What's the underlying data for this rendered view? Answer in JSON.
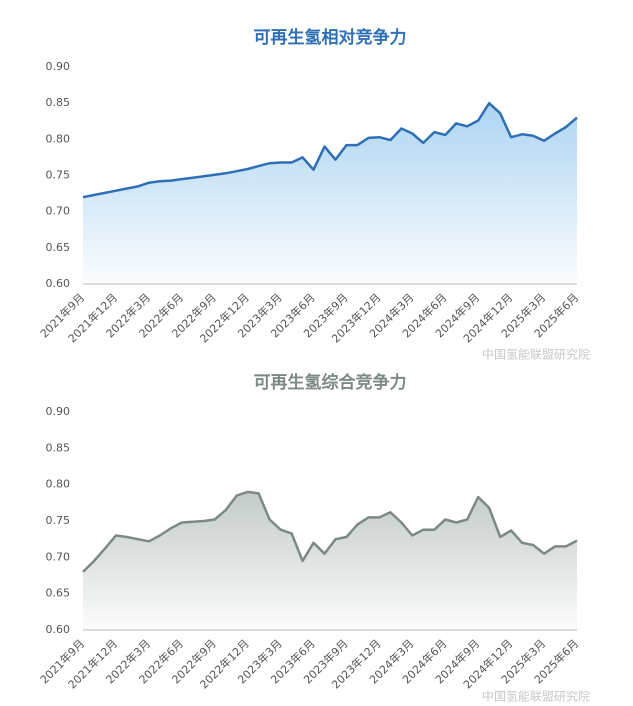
{
  "chart_data": [
    {
      "type": "area",
      "title": "可再生氢相对竞争力",
      "color": "#2f6fb5",
      "fill_color": "#9fcdf0",
      "grid": false,
      "source": "中国氢能联盟研究院",
      "categories": [
        "2021年9月",
        null,
        null,
        "2021年12月",
        null,
        null,
        "2022年3月",
        null,
        null,
        "2022年6月",
        null,
        null,
        "2022年9月",
        null,
        null,
        "2022年12月",
        null,
        null,
        "2023年3月",
        null,
        null,
        "2023年6月",
        null,
        null,
        "2023年9月",
        null,
        null,
        "2023年12月",
        null,
        null,
        "2024年3月",
        null,
        null,
        "2024年6月",
        null,
        null,
        "2024年9月",
        null,
        null,
        "2024年12月",
        null,
        null,
        "2025年3月",
        null,
        null,
        "2025年6月"
      ],
      "values": [
        0.72,
        0.723,
        0.726,
        0.729,
        0.732,
        0.735,
        0.74,
        0.742,
        0.743,
        0.745,
        0.747,
        0.749,
        0.751,
        0.753,
        0.756,
        0.759,
        0.763,
        0.767,
        0.768,
        0.768,
        0.775,
        0.758,
        0.79,
        0.772,
        0.792,
        0.792,
        0.802,
        0.803,
        0.799,
        0.815,
        0.808,
        0.795,
        0.81,
        0.806,
        0.822,
        0.818,
        0.826,
        0.85,
        0.836,
        0.803,
        0.807,
        0.805,
        0.798,
        0.808,
        0.817,
        0.83
      ],
      "ylim": [
        0.6,
        0.9
      ],
      "yticks": [
        {
          "value": 0.6,
          "label": "0.60"
        },
        0.65,
        {
          "value": 0.7,
          "label": "0.70"
        },
        0.75,
        {
          "value": 0.8,
          "label": "0.80"
        },
        0.85,
        {
          "value": 0.9,
          "label": "0.90"
        }
      ]
    },
    {
      "type": "area",
      "title": "可再生氢综合竞争力",
      "color": "#7d8987",
      "fill_color": "#b9c2c0",
      "grid": false,
      "source": "中国氢能联盟研究院",
      "categories": [
        "2021年9月",
        null,
        null,
        "2021年12月",
        null,
        null,
        "2022年3月",
        null,
        null,
        "2022年6月",
        null,
        null,
        "2022年9月",
        null,
        null,
        "2022年12月",
        null,
        null,
        "2023年3月",
        null,
        null,
        "2023年6月",
        null,
        null,
        "2023年9月",
        null,
        null,
        "2023年12月",
        null,
        null,
        "2024年3月",
        null,
        null,
        "2024年6月",
        null,
        null,
        "2024年9月",
        null,
        null,
        "2024年12月",
        null,
        null,
        "2025年3月",
        null,
        null,
        "2025年6月"
      ],
      "values": [
        0.68,
        0.695,
        0.712,
        0.73,
        0.728,
        0.725,
        0.722,
        0.73,
        0.74,
        0.748,
        0.749,
        0.75,
        0.752,
        0.765,
        0.785,
        0.79,
        0.788,
        0.752,
        0.738,
        0.733,
        0.695,
        0.72,
        0.705,
        0.725,
        0.728,
        0.745,
        0.755,
        0.755,
        0.762,
        0.748,
        0.73,
        0.738,
        0.738,
        0.752,
        0.748,
        0.752,
        0.783,
        0.768,
        0.728,
        0.737,
        0.72,
        0.717,
        0.705,
        0.715,
        0.715,
        0.723
      ],
      "ylim": [
        0.6,
        0.9
      ],
      "yticks": [
        {
          "value": 0.6,
          "label": "0.60"
        },
        0.65,
        {
          "value": 0.7,
          "label": "0.70"
        },
        0.75,
        {
          "value": 0.8,
          "label": "0.80"
        },
        0.85,
        {
          "value": 0.9,
          "label": "0.90"
        }
      ]
    }
  ]
}
